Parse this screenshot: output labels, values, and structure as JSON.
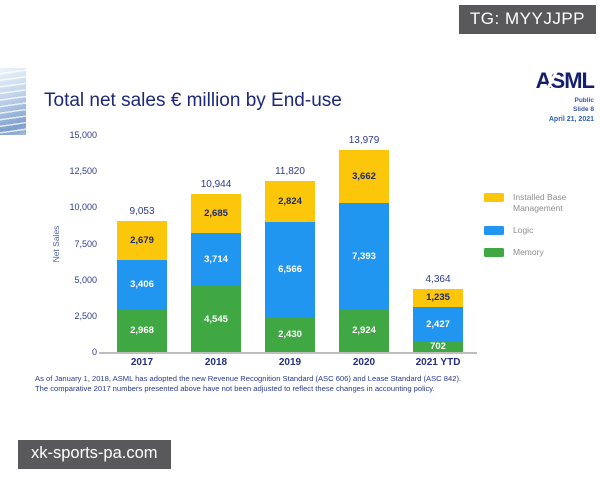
{
  "overlays": {
    "tg_badge": "TG: MYYJJPP",
    "watermark": "xk-sports-pa.com"
  },
  "slide": {
    "logo": "ASML",
    "meta": {
      "classification": "Public",
      "slide_number": "Slide 8",
      "date": "April 21, 2021"
    },
    "footnote_line1": "As of January 1, 2018, ASML has adopted the new Revenue Recognition Standard (ASC 606) and Lease Standard (ASC 842).",
    "footnote_line2": "The comparative 2017 numbers presented above have not been adjusted to reflect these changes in accounting policy."
  },
  "colors": {
    "memory_green": "#3fa843",
    "logic_blue": "#2196f0",
    "installed_base_yellow": "#fcc60a",
    "navy_text": "#232e7f",
    "legend_text": "#8e8e8e",
    "badge_background": "#59595b",
    "axis_gray": "#bdbdbd"
  },
  "chart_data": {
    "type": "bar",
    "stacked": true,
    "title": "Total net sales € million by End-use",
    "categories": [
      "2017",
      "2018",
      "2019",
      "2020",
      "2021 YTD"
    ],
    "series": [
      {
        "name": "Memory",
        "color": "#3fa843",
        "label_color": "#ffffff",
        "values": [
          2968,
          4545,
          2430,
          2924,
          702
        ]
      },
      {
        "name": "Logic",
        "color": "#2196f0",
        "label_color": "#ffffff",
        "values": [
          3406,
          3714,
          6566,
          7393,
          2427
        ]
      },
      {
        "name": "Installed Base Management",
        "color": "#fcc60a",
        "label_color": "#1d2a6e",
        "values": [
          2679,
          2685,
          2824,
          3662,
          1235
        ]
      }
    ],
    "totals": [
      9053,
      10944,
      11820,
      13979,
      4364
    ],
    "xlabel": "",
    "ylabel": "Net Sales",
    "ylim": [
      0,
      15000
    ],
    "yticks": [
      0,
      2500,
      5000,
      7500,
      10000,
      12500,
      15000
    ],
    "legend_position": "right",
    "legend_order": [
      "Installed Base Management",
      "Logic",
      "Memory"
    ],
    "grid": false
  }
}
